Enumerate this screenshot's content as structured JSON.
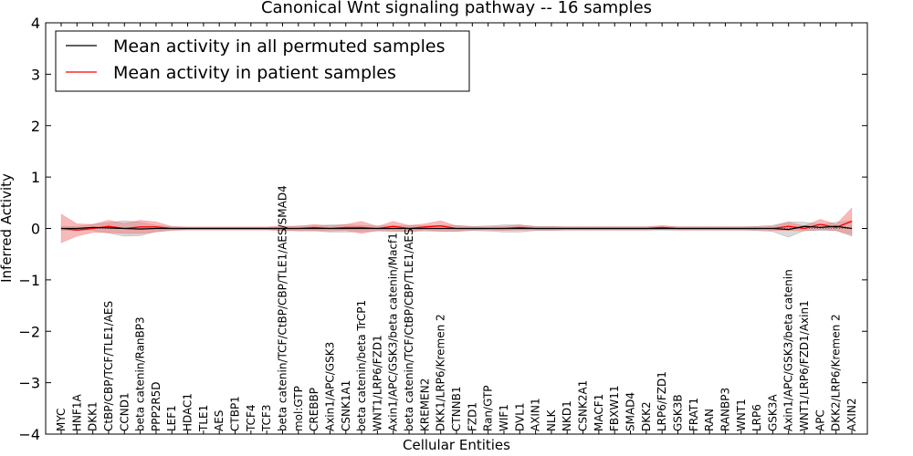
{
  "chart_data": {
    "type": "line",
    "title": "Canonical Wnt signaling pathway -- 16 samples",
    "xlabel": "Cellular Entities",
    "ylabel": "Inferred Activity",
    "ylim": [
      -4,
      4
    ],
    "yticks": [
      "4",
      "3",
      "2",
      "1",
      "0",
      "−1",
      "−2",
      "−3",
      "−4"
    ],
    "ytick_values": [
      4,
      3,
      2,
      1,
      0,
      -1,
      -2,
      -3,
      -4
    ],
    "grid": false,
    "legend_position": "top-left",
    "categories": [
      "MYC",
      "HNF1A",
      "DKK1",
      "CtBP/CBP/TCF/TLE1/AES",
      "CCND1",
      "beta catenin/RanBP3",
      "PPP2R5D",
      "LEF1",
      "HDAC1",
      "TLE1",
      "AES",
      "CTBP1",
      "TCF4",
      "TCF3",
      "beta catenin/TCF/CtBP/CBP/TLE1/AES/SMAD4",
      "mol:GTP",
      "CREBBP",
      "Axin1/APC/GSK3",
      "CSNK1A1",
      "beta catenin/beta TrCP1",
      "WNT1/LRP6/FZD1",
      "Axin1/APC/GSK3/beta catenin/Macf1",
      "beta catenin/TCF/CtBP/CBP/TLE1/AES",
      "KREMEN2",
      "DKK1/LRP6/Kremen 2",
      "CTNNB1",
      "FZD1",
      "Ran/GTP",
      "WIF1",
      "DVL1",
      "AXIN1",
      "NLK",
      "NKD1",
      "CSNK2A1",
      "MACF1",
      "FBXW11",
      "SMAD4",
      "DKK2",
      "LRP6/FZD1",
      "GSK3B",
      "FRAT1",
      "RAN",
      "RANBP3",
      "WNT1",
      "LRP6",
      "GSK3A",
      "Axin1/APC/GSK3/beta catenin",
      "WNT1/LRP6/FZD1/Axin1",
      "APC",
      "DKK2/LRP6/Kremen 2",
      "AXIN2"
    ],
    "series": [
      {
        "name": "Mean activity in all permuted samples",
        "color": "#000000",
        "band_color": "#bbbbbb",
        "values": [
          0.0,
          0.0,
          0.02,
          0.01,
          0.0,
          -0.01,
          0.0,
          0.0,
          0.0,
          0.0,
          0.0,
          0.0,
          0.0,
          0.0,
          0.0,
          0.0,
          0.0,
          0.0,
          0.0,
          0.0,
          0.0,
          0.0,
          0.0,
          0.0,
          0.0,
          0.0,
          0.0,
          0.0,
          0.0,
          0.0,
          0.0,
          0.0,
          0.0,
          0.0,
          0.0,
          0.0,
          0.0,
          0.0,
          0.0,
          0.0,
          0.0,
          0.0,
          0.0,
          0.0,
          0.0,
          0.0,
          -0.02,
          0.04,
          0.02,
          0.04,
          0.0
        ],
        "band": [
          0.04,
          0.04,
          0.06,
          0.1,
          0.15,
          0.13,
          0.06,
          0.03,
          0.02,
          0.02,
          0.02,
          0.02,
          0.02,
          0.02,
          0.03,
          0.05,
          0.05,
          0.07,
          0.07,
          0.06,
          0.05,
          0.05,
          0.06,
          0.05,
          0.06,
          0.06,
          0.04,
          0.05,
          0.07,
          0.07,
          0.04,
          0.04,
          0.03,
          0.03,
          0.03,
          0.03,
          0.03,
          0.03,
          0.03,
          0.03,
          0.03,
          0.03,
          0.03,
          0.03,
          0.04,
          0.06,
          0.15,
          0.08,
          0.06,
          0.08,
          0.15
        ]
      },
      {
        "name": "Mean activity in patient samples",
        "color": "#ff0000",
        "band_color": "#f08080",
        "values": [
          0.0,
          -0.03,
          0.0,
          0.04,
          0.0,
          0.03,
          0.03,
          0.0,
          0.0,
          0.0,
          0.0,
          0.0,
          0.0,
          0.0,
          0.0,
          0.0,
          0.02,
          0.0,
          0.02,
          0.02,
          0.0,
          0.04,
          0.0,
          0.03,
          0.05,
          0.0,
          0.0,
          0.0,
          0.0,
          0.02,
          0.0,
          0.0,
          0.0,
          0.0,
          0.0,
          0.0,
          0.0,
          0.0,
          0.02,
          0.0,
          0.0,
          0.0,
          0.0,
          0.0,
          0.0,
          0.0,
          0.04,
          0.0,
          0.08,
          0.02,
          0.14
        ],
        "band": [
          0.28,
          0.12,
          0.08,
          0.12,
          0.1,
          0.13,
          0.1,
          0.04,
          0.03,
          0.03,
          0.03,
          0.03,
          0.03,
          0.03,
          0.05,
          0.04,
          0.06,
          0.05,
          0.06,
          0.12,
          0.04,
          0.1,
          0.06,
          0.06,
          0.1,
          0.05,
          0.03,
          0.03,
          0.04,
          0.05,
          0.03,
          0.03,
          0.03,
          0.03,
          0.03,
          0.03,
          0.03,
          0.03,
          0.04,
          0.03,
          0.03,
          0.03,
          0.03,
          0.03,
          0.03,
          0.04,
          0.08,
          0.05,
          0.1,
          0.06,
          0.26
        ]
      }
    ]
  }
}
